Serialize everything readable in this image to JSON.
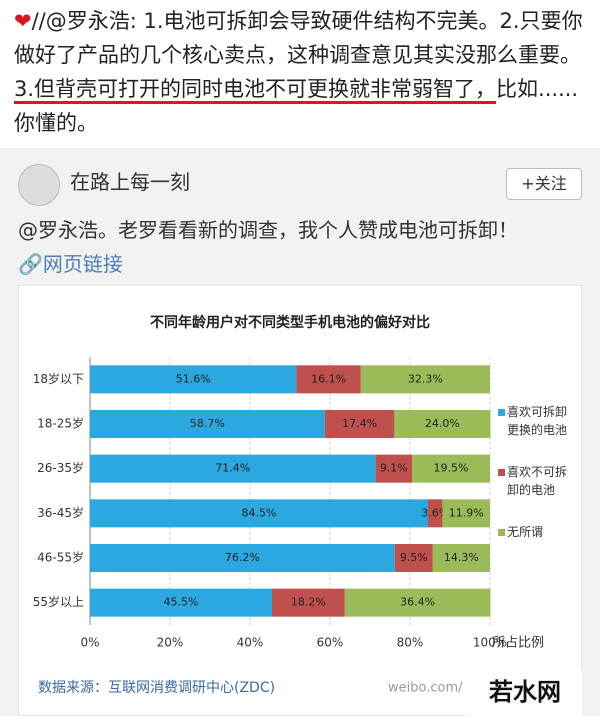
{
  "post": {
    "text_1": "//@罗永浩: 1.电池可拆卸会导致硬件结构不完美。2.只要你做好了产品的几个核心卖点，这种调查意见其实没那么重要。",
    "text_highlight": "3.但背壳可打开的同时电池不可更换就非常弱智了，",
    "text_2": "比如......你懂的。"
  },
  "repost": {
    "user": "在路上每一刻",
    "follow": "+关注",
    "text": "@罗永浩。老罗看看新的调查，我个人赞成电池可拆卸！",
    "link": "网页链接"
  },
  "chart_data": {
    "type": "stacked-bar-horizontal",
    "title": "不同年龄用户对不同类型手机电池的偏好对比",
    "categories": [
      "18岁以下",
      "18-25岁",
      "26-35岁",
      "36-45岁",
      "46-55岁",
      "55岁以上"
    ],
    "series": [
      {
        "name": "喜欢可拆卸更换的电池",
        "color": "#2aa8df",
        "values": [
          51.6,
          58.7,
          71.4,
          84.5,
          76.2,
          45.5
        ],
        "value_labels": [
          "51.6%",
          "58.7%",
          "71.4%",
          "84.5%",
          "76.2%",
          "45.5%"
        ]
      },
      {
        "name": "喜欢不可拆卸的电池",
        "color": "#c0504d",
        "values": [
          16.1,
          17.4,
          9.1,
          3.6,
          9.5,
          18.2
        ],
        "value_labels": [
          "16.1%",
          "17.4%",
          "9.1%",
          "3.6%",
          "9.5%",
          "18.2%"
        ]
      },
      {
        "name": "无所谓",
        "color": "#9bbb59",
        "values": [
          32.3,
          24,
          19.5,
          11.9,
          14.3,
          36.4
        ],
        "value_labels": [
          "32.3%",
          "24.0%",
          "19.5%",
          "11.9%",
          "14.3%",
          "36.4%"
        ]
      }
    ],
    "xlim": [
      0,
      100
    ],
    "xticks": [
      {
        "value": 0,
        "label": "0%"
      },
      {
        "value": 20,
        "label": "20%"
      },
      {
        "value": 40,
        "label": "40%"
      },
      {
        "value": 60,
        "label": "60%"
      },
      {
        "value": 80,
        "label": "80%"
      },
      {
        "value": 100,
        "label": "100%"
      }
    ],
    "x_label": "所占比例",
    "grid": true,
    "legend": "right",
    "source": "数据来源：互联网消费调研中心(ZDC)",
    "watermark": "weibo.com/"
  },
  "site_logo": "若水网"
}
